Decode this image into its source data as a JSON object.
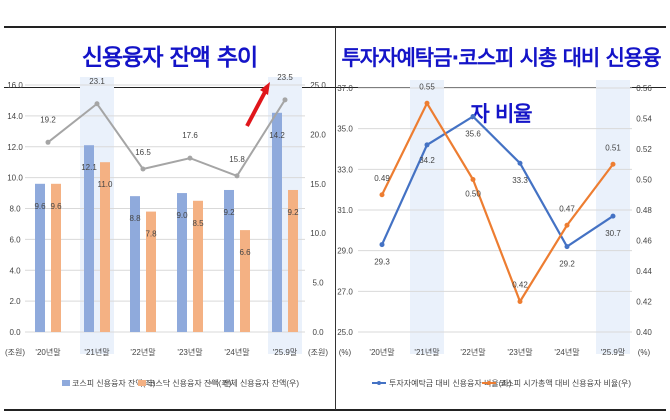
{
  "titles": {
    "left": "신용융자 잔액 추이",
    "right": "투자자예탁금·코스피 시총 대비 신용융자 비율"
  },
  "colors": {
    "title": "#1414c8",
    "kospi_bar": "#8faadc",
    "kosdaq_bar": "#f4b183",
    "total_line": "#a5a5a5",
    "deposit_line": "#4472c4",
    "mcap_line": "#ed7d31",
    "arrow": "#e0161b",
    "highlight": "#eaf1fb"
  },
  "chart_data": [
    {
      "type": "bar+line",
      "categories": [
        "'20년말",
        "'21년말",
        "'22년말",
        "'23년말",
        "'24년말",
        "'25.9말"
      ],
      "highlighted_categories": [
        "'21년말",
        "'25.9말"
      ],
      "y_left": {
        "unit": "(조원)",
        "range": [
          0,
          16
        ],
        "ticks": [
          "0.0",
          "2.0",
          "4.0",
          "6.0",
          "8.0",
          "10.0",
          "12.0",
          "14.0",
          "16.0"
        ]
      },
      "y_right": {
        "unit": "(조원)",
        "range": [
          0,
          25
        ],
        "ticks": [
          "0.0",
          "5.0",
          "10.0",
          "15.0",
          "20.0",
          "25.0"
        ]
      },
      "series": [
        {
          "name": "코스피 신용융자 잔액(좌)",
          "kind": "bar",
          "axis": "left",
          "values": [
            9.6,
            12.1,
            8.8,
            9.0,
            9.2,
            14.2
          ]
        },
        {
          "name": "코스닥 신용융자 잔액(좌)",
          "kind": "bar",
          "axis": "left",
          "values": [
            9.6,
            11.0,
            7.8,
            8.5,
            6.6,
            9.2
          ]
        },
        {
          "name": "전체 신용융자 잔액(우)",
          "kind": "line",
          "axis": "right",
          "values": [
            19.2,
            23.1,
            16.5,
            17.6,
            15.8,
            23.5
          ]
        }
      ],
      "annotation": "red upward arrow at '25.9말",
      "grid": true,
      "legend": "bottom"
    },
    {
      "type": "line",
      "categories": [
        "'20년말",
        "'21년말",
        "'22년말",
        "'23년말",
        "'24년말",
        "'25.9말"
      ],
      "highlighted_categories": [
        "'21년말",
        "'25.9말"
      ],
      "y_left": {
        "unit": "(%)",
        "range": [
          25,
          37
        ],
        "ticks": [
          "25.0",
          "27.0",
          "29.0",
          "31.0",
          "33.0",
          "35.0",
          "37.0"
        ]
      },
      "y_right": {
        "unit": "(%)",
        "range": [
          0.4,
          0.56
        ],
        "ticks": [
          "0.40",
          "0.42",
          "0.44",
          "0.46",
          "0.48",
          "0.50",
          "0.52",
          "0.54",
          "0.56"
        ]
      },
      "series": [
        {
          "name": "투자자예탁금 대비 신용융자 비율(좌)",
          "axis": "left",
          "values": [
            29.3,
            34.2,
            35.6,
            33.3,
            29.2,
            30.7
          ],
          "labels": [
            "29.3",
            "34.2",
            "35.6",
            "33.3",
            "29.2",
            "30.7"
          ]
        },
        {
          "name": "코스피 시가총액 대비 신용융자 비율(우)",
          "axis": "right",
          "values": [
            0.49,
            0.55,
            0.5,
            0.42,
            0.47,
            0.51
          ],
          "labels": [
            "0.49",
            "0.55",
            "0.50",
            "0.42",
            "0.47",
            "0.51"
          ]
        }
      ],
      "grid": true,
      "legend": "bottom"
    }
  ]
}
